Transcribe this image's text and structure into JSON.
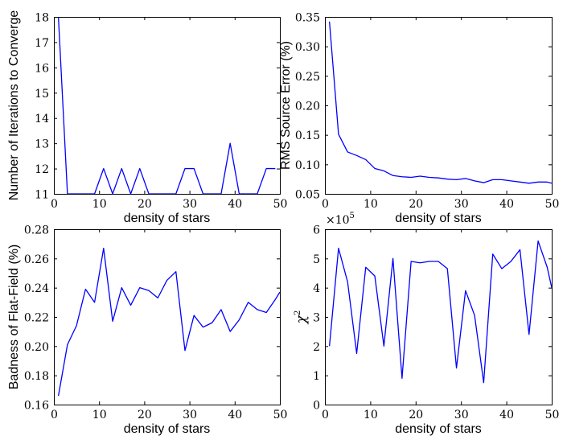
{
  "colors": {
    "line": "#0000ff",
    "axes": "#000000",
    "background": "#ffffff"
  },
  "chart_data": [
    {
      "type": "line",
      "xlabel": "density of stars",
      "ylabel": "Number of Iterations to Converge",
      "xlim": [
        0,
        50
      ],
      "ylim": [
        11,
        18
      ],
      "xticks": [
        0,
        10,
        20,
        30,
        40,
        50
      ],
      "yticks": [
        11,
        12,
        13,
        14,
        15,
        16,
        17,
        18
      ],
      "grid": false,
      "x": [
        1,
        3,
        5,
        7,
        9,
        11,
        13,
        15,
        17,
        19,
        21,
        23,
        25,
        27,
        29,
        31,
        33,
        35,
        37,
        39,
        41,
        43,
        45,
        47,
        49
      ],
      "y": [
        18,
        11,
        11,
        11,
        11,
        12,
        11,
        12,
        11,
        12,
        11,
        11,
        11,
        11,
        12,
        12,
        11,
        11,
        11,
        13,
        11,
        11,
        11,
        12,
        12
      ]
    },
    {
      "type": "line",
      "xlabel": "density of stars",
      "ylabel": "RMS Source Error (%)",
      "xlim": [
        0,
        50
      ],
      "ylim": [
        0.05,
        0.35
      ],
      "xticks": [
        0,
        10,
        20,
        30,
        40,
        50
      ],
      "yticks": [
        0.05,
        0.1,
        0.15,
        0.2,
        0.25,
        0.3,
        0.35
      ],
      "ytick_labels": [
        "0.05",
        "0.10",
        "0.15",
        "0.20",
        "0.25",
        "0.30",
        "0.35"
      ],
      "grid": false,
      "x": [
        1,
        3,
        5,
        7,
        9,
        11,
        13,
        15,
        17,
        19,
        21,
        23,
        25,
        27,
        29,
        31,
        33,
        35,
        37,
        39,
        41,
        43,
        45,
        47,
        49,
        50
      ],
      "y": [
        0.342,
        0.151,
        0.121,
        0.115,
        0.108,
        0.093,
        0.089,
        0.081,
        0.079,
        0.078,
        0.08,
        0.078,
        0.077,
        0.075,
        0.074,
        0.076,
        0.072,
        0.069,
        0.074,
        0.074,
        0.072,
        0.07,
        0.068,
        0.07,
        0.07,
        0.068
      ]
    },
    {
      "type": "line",
      "xlabel": "density of stars",
      "ylabel": "Badness of Flat-Field (%)",
      "xlim": [
        0,
        50
      ],
      "ylim": [
        0.16,
        0.28
      ],
      "xticks": [
        0,
        10,
        20,
        30,
        40,
        50
      ],
      "yticks": [
        0.16,
        0.18,
        0.2,
        0.22,
        0.24,
        0.26,
        0.28
      ],
      "ytick_labels": [
        "0.16",
        "0.18",
        "0.20",
        "0.22",
        "0.24",
        "0.26",
        "0.28"
      ],
      "grid": false,
      "x": [
        1,
        3,
        5,
        7,
        9,
        11,
        13,
        15,
        17,
        19,
        21,
        23,
        25,
        27,
        29,
        31,
        33,
        35,
        37,
        39,
        41,
        43,
        45,
        47,
        49,
        50
      ],
      "y": [
        0.166,
        0.201,
        0.214,
        0.239,
        0.23,
        0.267,
        0.217,
        0.24,
        0.228,
        0.24,
        0.238,
        0.233,
        0.245,
        0.251,
        0.197,
        0.221,
        0.213,
        0.216,
        0.225,
        0.21,
        0.218,
        0.23,
        0.225,
        0.223,
        0.232,
        0.237
      ]
    },
    {
      "type": "line",
      "xlabel": "density of stars",
      "ylabel": "χ",
      "ylabel_superscript": "2",
      "offset_text": "×10",
      "offset_exponent": "5",
      "xlim": [
        0,
        50
      ],
      "ylim": [
        0,
        6
      ],
      "xticks": [
        0,
        10,
        20,
        30,
        40,
        50
      ],
      "yticks": [
        0,
        1,
        2,
        3,
        4,
        5,
        6
      ],
      "grid": false,
      "x": [
        1,
        3,
        5,
        7,
        9,
        11,
        13,
        15,
        17,
        19,
        21,
        23,
        25,
        27,
        29,
        31,
        33,
        35,
        37,
        39,
        41,
        43,
        45,
        47,
        49,
        50
      ],
      "y": [
        2.0,
        5.35,
        4.2,
        1.75,
        4.7,
        4.4,
        2.0,
        5.0,
        0.9,
        4.9,
        4.85,
        4.9,
        4.9,
        4.65,
        1.25,
        3.9,
        3.05,
        0.75,
        5.15,
        4.65,
        4.9,
        5.3,
        2.4,
        5.6,
        4.7,
        4.0
      ]
    }
  ]
}
